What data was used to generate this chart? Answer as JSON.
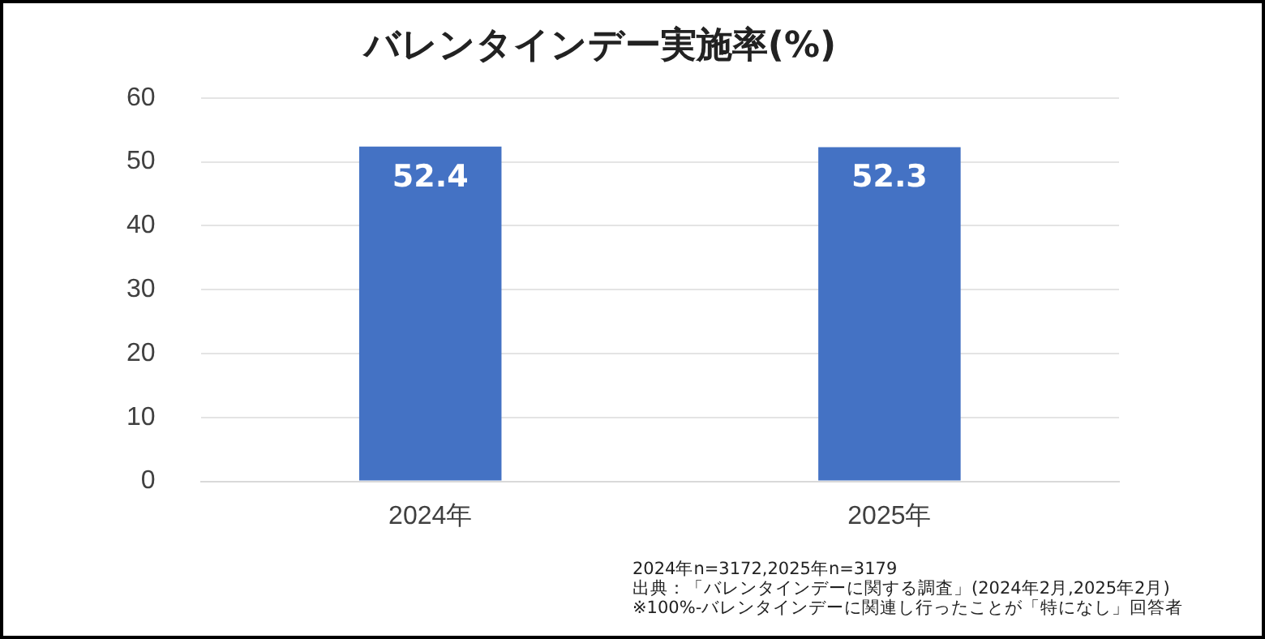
{
  "chart_data": {
    "type": "bar",
    "title": "バレンタインデー実施率(%)",
    "categories": [
      "2024年",
      "2025年"
    ],
    "values": [
      52.4,
      52.3
    ],
    "color": "#4472c4",
    "ylim": [
      0,
      60
    ],
    "yticks": [
      0,
      10,
      20,
      30,
      40,
      50,
      60
    ],
    "grid": "y",
    "data_labels": true,
    "annotations": [
      "2024年n=3172,2025年n=3179",
      "出典：「バレンタインデーに関する調査」(2024年2月,2025年2月)",
      "※100%-バレンタインデーに関連し行ったことが「特になし」回答者"
    ]
  }
}
